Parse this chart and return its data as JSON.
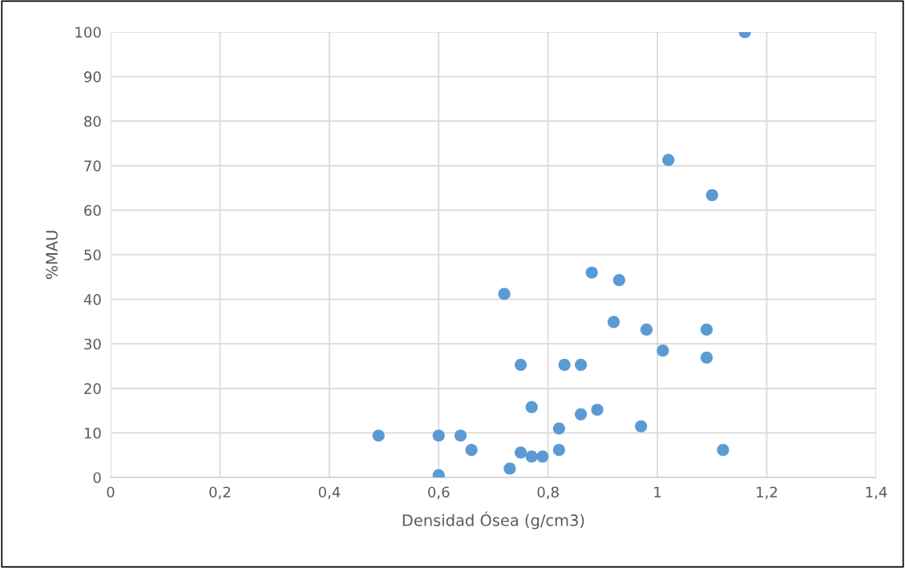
{
  "chart_data": {
    "type": "scatter",
    "xlabel": "Densidad Ósea (g/cm3)",
    "ylabel": "%MAU",
    "x": [
      0.49,
      0.6,
      0.6,
      0.64,
      0.66,
      0.72,
      0.73,
      0.75,
      0.75,
      0.77,
      0.77,
      0.79,
      0.82,
      0.82,
      0.83,
      0.86,
      0.86,
      0.88,
      0.89,
      0.92,
      0.93,
      0.97,
      0.98,
      1.01,
      1.09,
      1.09,
      1.12,
      1.16,
      1.02,
      1.1
    ],
    "series": [
      {
        "color": "#5b9bd5",
        "values": [
          9.4,
          9.4,
          0.5,
          9.4,
          6.2,
          41.2,
          2.0,
          25.3,
          5.6,
          15.8,
          4.7,
          4.7,
          11.0,
          6.2,
          25.3,
          25.3,
          14.2,
          46.0,
          15.2,
          34.9,
          44.3,
          11.5,
          33.2,
          28.5,
          33.2,
          26.9,
          6.2,
          100,
          71.3,
          63.4
        ]
      }
    ],
    "xlim": [
      0,
      1.4
    ],
    "xticks": [
      0,
      {
        "value": 0.2,
        "label": "0,2"
      },
      {
        "value": 0.4,
        "label": "0,4"
      },
      {
        "value": 0.6,
        "label": "0,6"
      },
      {
        "value": 0.8,
        "label": "0,8"
      },
      1,
      {
        "value": 1.2,
        "label": "1,2"
      },
      {
        "value": 1.4,
        "label": "1,4"
      }
    ],
    "ylim": [
      0,
      100
    ],
    "yticks": [
      0,
      10,
      20,
      30,
      40,
      50,
      60,
      70,
      80,
      90,
      100
    ],
    "grid": true,
    "marker": "circle",
    "legend": false
  }
}
